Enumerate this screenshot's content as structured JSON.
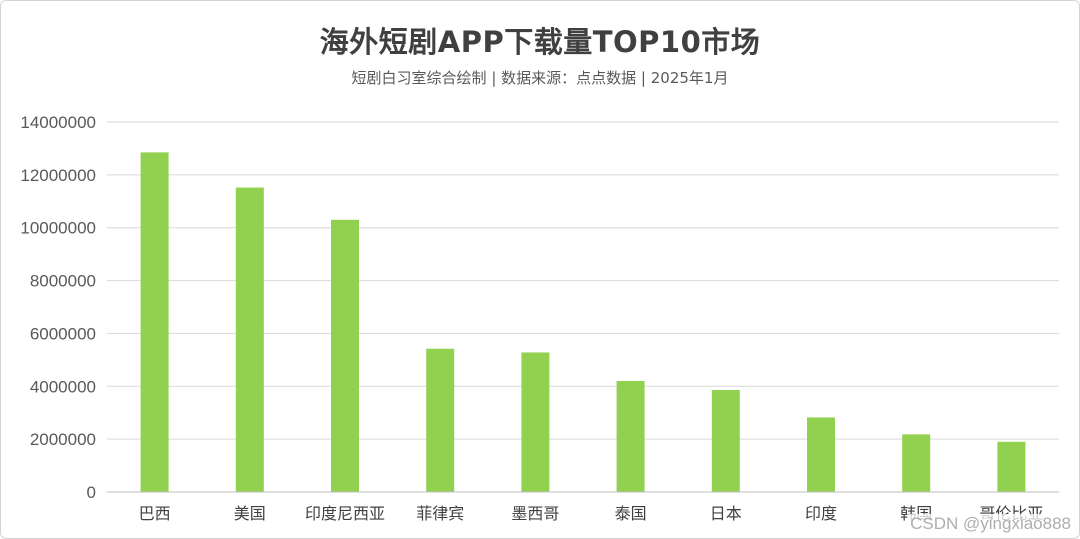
{
  "chart_data": {
    "type": "bar",
    "title": "海外短剧APP下载量TOP10市场",
    "subtitle": "短剧白习室综合绘制 | 数据来源：点点数据  |  2025年1月",
    "categories": [
      "巴西",
      "美国",
      "印度尼西亚",
      "菲律宾",
      "墨西哥",
      "泰国",
      "日本",
      "印度",
      "韩国",
      "哥伦比亚"
    ],
    "values": [
      12850000,
      11520000,
      10300000,
      5420000,
      5280000,
      4200000,
      3860000,
      2820000,
      2180000,
      1900000
    ],
    "ylim": [
      0,
      14000000
    ],
    "yticks": [
      "0",
      "2000000",
      "4000000",
      "6000000",
      "8000000",
      "10000000",
      "12000000",
      "14000000"
    ],
    "xlabel": "",
    "ylabel": "",
    "grid": true,
    "bar_color": "#92d050",
    "grid_color": "#d9d9d9"
  },
  "watermark": "CSDN @yingxiao888"
}
